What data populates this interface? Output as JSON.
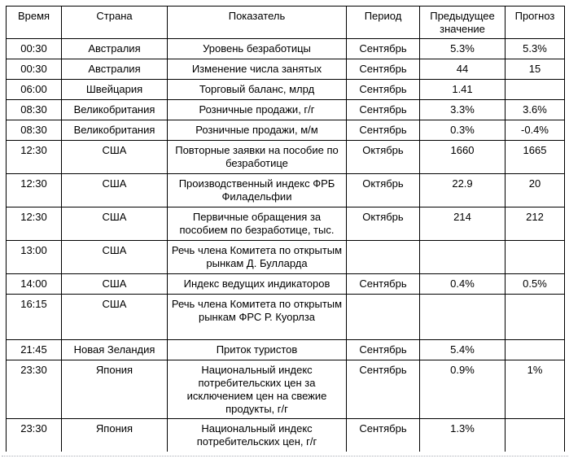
{
  "table": {
    "headers": {
      "time": "Время",
      "country": "Страна",
      "indicator": "Показатель",
      "period": "Период",
      "previous": "Предыдущее значение",
      "forecast": "Прогноз"
    },
    "rows": [
      {
        "time": "00:30",
        "country": "Австралия",
        "indicator": "Уровень безработицы",
        "period": "Сентябрь",
        "previous": "5.3%",
        "forecast": "5.3%"
      },
      {
        "time": "00:30",
        "country": "Австралия",
        "indicator": "Изменение числа занятых",
        "period": "Сентябрь",
        "previous": "44",
        "forecast": "15"
      },
      {
        "time": "06:00",
        "country": "Швейцария",
        "indicator": "Торговый баланс, млрд",
        "period": "Сентябрь",
        "previous": "1.41",
        "forecast": ""
      },
      {
        "time": "08:30",
        "country": "Великобритания",
        "indicator": "Розничные продажи, г/г",
        "period": "Сентябрь",
        "previous": "3.3%",
        "forecast": "3.6%"
      },
      {
        "time": "08:30",
        "country": "Великобритания",
        "indicator": "Розничные продажи, м/м",
        "period": "Сентябрь",
        "previous": "0.3%",
        "forecast": "-0.4%"
      },
      {
        "time": "12:30",
        "country": "США",
        "indicator": "Повторные заявки на пособие по безработице",
        "period": "Октябрь",
        "previous": "1660",
        "forecast": "1665"
      },
      {
        "time": "12:30",
        "country": "США",
        "indicator": "Производственный индекс ФРБ Филадельфии",
        "period": "Октябрь",
        "previous": "22.9",
        "forecast": "20"
      },
      {
        "time": "12:30",
        "country": "США",
        "indicator": "Первичные обращения за пособием по безработице, тыс.",
        "period": "Октябрь",
        "previous": "214",
        "forecast": "212"
      },
      {
        "time": "13:00",
        "country": "США",
        "indicator": "Речь члена Комитета по открытым рынкам Д. Булларда",
        "period": "",
        "previous": "",
        "forecast": ""
      },
      {
        "time": "14:00",
        "country": "США",
        "indicator": "Индекс ведущих индикаторов",
        "period": "Сентябрь",
        "previous": "0.4%",
        "forecast": "0.5%"
      },
      {
        "time": "16:15",
        "country": "США",
        "indicator": "Речь члена Комитета по открытым рынкам ФРС Р. Куорлза",
        "period": "",
        "previous": "",
        "forecast": ""
      },
      {
        "time": "21:45",
        "country": "Новая Зеландия",
        "indicator": "Приток туристов",
        "period": "Сентябрь",
        "previous": "5.4%",
        "forecast": ""
      },
      {
        "time": "23:30",
        "country": "Япония",
        "indicator": "Национальный индекс потребительских цен за исключением цен на свежие продукты, г/г",
        "period": "Сентябрь",
        "previous": "0.9%",
        "forecast": "1%"
      },
      {
        "time": "23:30",
        "country": "Япония",
        "indicator": "Национальный индекс потребительских цен, г/г",
        "period": "Сентябрь",
        "previous": "1.3%",
        "forecast": ""
      }
    ],
    "colors": {
      "border": "#000000",
      "text": "#000000",
      "background": "#ffffff",
      "bottom_dotted_line": "#a9adb5"
    }
  }
}
